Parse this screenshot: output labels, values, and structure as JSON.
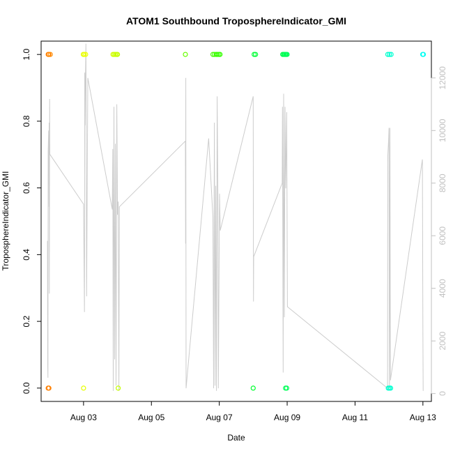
{
  "chart_data": {
    "type": "scatter",
    "title": "ATOM1 Southbound TroposphereIndicator_GMI",
    "xlabel": "Date",
    "ylabel": "TroposphereIndicator_GMI",
    "x_ticks": [
      "Aug 03",
      "Aug 05",
      "Aug 07",
      "Aug 09",
      "Aug 11",
      "Aug 13"
    ],
    "x_range": [
      "2016-08-01 18:00",
      "2016-08-13 06:00"
    ],
    "y_ticks": [
      "0.0",
      "0.2",
      "0.4",
      "0.6",
      "0.8",
      "1.0"
    ],
    "ylim": [
      -0.04,
      1.04
    ],
    "y2_ticks": [
      "0",
      "2000",
      "4000",
      "6000",
      "8000",
      "10000",
      "12000"
    ],
    "y2lim": [
      -300,
      13400
    ],
    "grid": false,
    "series": [
      {
        "kind": "points",
        "color_note": "rainbow gradient by time",
        "points": [
          [
            "2016-08-01 23:00",
            1,
            "#ff7f00"
          ],
          [
            "2016-08-01 23:30",
            1,
            "#ff8000"
          ],
          [
            "2016-08-02 00:30",
            1,
            "#ff8c00"
          ],
          [
            "2016-08-01 23:00",
            0,
            "#ff7f00"
          ],
          [
            "2016-08-01 23:30",
            0,
            "#ff8000"
          ],
          [
            "2016-08-02 23:50",
            1,
            "#e6ff00"
          ],
          [
            "2016-08-03 00:30",
            1,
            "#e8ff00"
          ],
          [
            "2016-08-03 01:30",
            1,
            "#ecff00"
          ],
          [
            "2016-08-03 00:00",
            0,
            "#e6ff00"
          ],
          [
            "2016-08-03 20:50",
            1,
            "#d4ff00"
          ],
          [
            "2016-08-03 21:40",
            1,
            "#d0ff00"
          ],
          [
            "2016-08-03 22:30",
            1,
            "#ccff00"
          ],
          [
            "2016-08-03 23:20",
            1,
            "#c8ff00"
          ],
          [
            "2016-08-04 00:00",
            1,
            "#c4ff00"
          ],
          [
            "2016-08-04 00:30",
            0,
            "#c4ff00"
          ],
          [
            "2016-08-06 00:00",
            1,
            "#66ff00"
          ],
          [
            "2016-08-06 19:30",
            1,
            "#44ff00"
          ],
          [
            "2016-08-06 20:40",
            1,
            "#40ff00"
          ],
          [
            "2016-08-06 21:50",
            1,
            "#3cff00"
          ],
          [
            "2016-08-06 22:40",
            1,
            "#38ff00"
          ],
          [
            "2016-08-06 23:40",
            1,
            "#36ff00"
          ],
          [
            "2016-08-07 00:30",
            1,
            "#34ff00"
          ],
          [
            "2016-08-08 00:40",
            1,
            "#00ff33"
          ],
          [
            "2016-08-08 01:40",
            1,
            "#00ff36"
          ],
          [
            "2016-08-08 00:00",
            0,
            "#00ff30"
          ],
          [
            "2016-08-08 20:50",
            1,
            "#00ff4d"
          ],
          [
            "2016-08-08 21:30",
            1,
            "#00ff50"
          ],
          [
            "2016-08-08 22:10",
            1,
            "#00ff53"
          ],
          [
            "2016-08-08 22:50",
            1,
            "#00ff56"
          ],
          [
            "2016-08-08 23:20",
            1,
            "#00ff59"
          ],
          [
            "2016-08-09 00:00",
            1,
            "#00ff5c"
          ],
          [
            "2016-08-08 22:50",
            0,
            "#00ff56"
          ],
          [
            "2016-08-08 23:40",
            0,
            "#00ff5a"
          ],
          [
            "2016-08-11 23:10",
            1,
            "#00ffcc"
          ],
          [
            "2016-08-12 00:20",
            1,
            "#00ffd0"
          ],
          [
            "2016-08-12 01:30",
            1,
            "#00ffd4"
          ],
          [
            "2016-08-11 23:30",
            0,
            "#00ffcc"
          ],
          [
            "2016-08-12 00:20",
            0,
            "#00ffd0"
          ],
          [
            "2016-08-12 01:10",
            0,
            "#00ffd2"
          ],
          [
            "2016-08-12 23:50",
            1,
            "#00fff0"
          ],
          [
            "2016-08-13 00:20",
            1,
            "#00fff4"
          ]
        ]
      },
      {
        "kind": "line",
        "axis": "right",
        "color": "#cccccc",
        "points": [
          [
            "2016-08-01 22:30",
            5800
          ],
          [
            "2016-08-01 22:40",
            1100
          ],
          [
            "2016-08-01 22:50",
            600
          ],
          [
            "2016-08-01 23:00",
            9200
          ],
          [
            "2016-08-01 23:20",
            10000
          ],
          [
            "2016-08-01 23:35",
            7100
          ],
          [
            "2016-08-01 23:40",
            10300
          ],
          [
            "2016-08-01 23:50",
            3800
          ],
          [
            "2016-08-02 00:00",
            11200
          ],
          [
            "2016-08-02 00:10",
            9100
          ],
          [
            "2016-08-03 00:00",
            7200
          ],
          [
            "2016-08-03 00:40",
            3100
          ],
          [
            "2016-08-03 00:50",
            12200
          ],
          [
            "2016-08-03 01:00",
            10200
          ],
          [
            "2016-08-03 01:20",
            12000
          ],
          [
            "2016-08-03 01:40",
            13300
          ],
          [
            "2016-08-03 02:10",
            3700
          ],
          [
            "2016-08-03 03:00",
            12000
          ],
          [
            "2016-08-03 20:20",
            7000
          ],
          [
            "2016-08-03 20:40",
            9300
          ],
          [
            "2016-08-03 21:00",
            100
          ],
          [
            "2016-08-03 21:30",
            10900
          ],
          [
            "2016-08-03 22:00",
            1300
          ],
          [
            "2016-08-03 22:30",
            9500
          ],
          [
            "2016-08-03 23:00",
            300
          ],
          [
            "2016-08-03 23:30",
            11000
          ],
          [
            "2016-08-04 00:00",
            6800
          ],
          [
            "2016-08-04 00:30",
            7300
          ],
          [
            "2016-08-04 01:00",
            100
          ],
          [
            "2016-08-04 01:20",
            7100
          ],
          [
            "2016-08-06 00:00",
            9600
          ],
          [
            "2016-08-06 00:10",
            5700
          ],
          [
            "2016-08-06 00:20",
            12000
          ],
          [
            "2016-08-06 00:30",
            200
          ],
          [
            "2016-08-06 16:30",
            9700
          ],
          [
            "2016-08-06 19:30",
            6700
          ],
          [
            "2016-08-06 20:00",
            200
          ],
          [
            "2016-08-06 20:30",
            10300
          ],
          [
            "2016-08-06 21:00",
            300
          ],
          [
            "2016-08-06 21:30",
            7900
          ],
          [
            "2016-08-06 22:00",
            100
          ],
          [
            "2016-08-06 22:30",
            11300
          ],
          [
            "2016-08-06 23:00",
            7700
          ],
          [
            "2016-08-06 23:20",
            200
          ],
          [
            "2016-08-07 00:10",
            7600
          ],
          [
            "2016-08-07 00:40",
            6200
          ],
          [
            "2016-08-08 00:00",
            11300
          ],
          [
            "2016-08-08 00:10",
            3500
          ],
          [
            "2016-08-08 00:20",
            5200
          ],
          [
            "2016-08-08 20:30",
            8000
          ],
          [
            "2016-08-08 20:40",
            10900
          ],
          [
            "2016-08-08 21:10",
            800
          ],
          [
            "2016-08-08 21:30",
            11400
          ],
          [
            "2016-08-08 22:00",
            2900
          ],
          [
            "2016-08-08 22:30",
            10900
          ],
          [
            "2016-08-08 23:00",
            7800
          ],
          [
            "2016-08-08 23:40",
            10700
          ],
          [
            "2016-08-09 00:10",
            3300
          ],
          [
            "2016-08-11 23:00",
            200
          ],
          [
            "2016-08-11 23:10",
            9000
          ],
          [
            "2016-08-11 23:40",
            9600
          ],
          [
            "2016-08-12 00:00",
            10100
          ],
          [
            "2016-08-12 00:20",
            200
          ],
          [
            "2016-08-12 00:40",
            10100
          ],
          [
            "2016-08-12 01:00",
            500
          ],
          [
            "2016-08-12 23:40",
            8900
          ],
          [
            "2016-08-13 00:00",
            2400
          ],
          [
            "2016-08-13 00:10",
            100
          ]
        ]
      }
    ]
  }
}
